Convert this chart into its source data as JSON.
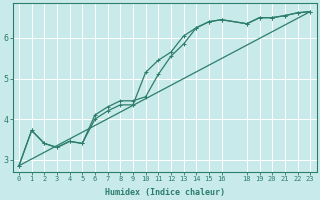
{
  "xlabel": "Humidex (Indice chaleur)",
  "bg_color": "#c8eaea",
  "line_color": "#2d7d6b",
  "grid_color": "#ffffff",
  "xlim": [
    -0.5,
    23.5
  ],
  "ylim": [
    2.7,
    6.85
  ],
  "yticks": [
    3,
    4,
    5,
    6
  ],
  "xticks": [
    0,
    1,
    2,
    3,
    4,
    5,
    6,
    7,
    8,
    9,
    10,
    11,
    12,
    13,
    14,
    15,
    16,
    18,
    19,
    20,
    21,
    22,
    23
  ],
  "series1_x": [
    0,
    1,
    2,
    3,
    4,
    5,
    6,
    7,
    8,
    9,
    10,
    11,
    12,
    13,
    14,
    15,
    16,
    18,
    19,
    20,
    21,
    22,
    23
  ],
  "series1_y": [
    2.85,
    3.72,
    3.4,
    3.3,
    3.45,
    3.4,
    4.1,
    4.3,
    4.45,
    4.45,
    4.55,
    5.1,
    5.55,
    5.85,
    6.25,
    6.4,
    6.45,
    6.35,
    6.5,
    6.5,
    6.55,
    6.62,
    6.65
  ],
  "series2_x": [
    0,
    1,
    2,
    3,
    4,
    5,
    6,
    7,
    8,
    9,
    10,
    11,
    12,
    13,
    14,
    15,
    16,
    18,
    19,
    20,
    21,
    22,
    23
  ],
  "series2_y": [
    2.85,
    3.72,
    3.4,
    3.3,
    3.45,
    3.4,
    4.0,
    4.2,
    4.35,
    4.35,
    5.15,
    5.45,
    5.65,
    6.05,
    6.25,
    6.4,
    6.45,
    6.35,
    6.5,
    6.5,
    6.55,
    6.62,
    6.65
  ],
  "series3_x": [
    0,
    23
  ],
  "series3_y": [
    2.85,
    6.65
  ],
  "marker": "+",
  "marker_size": 3.5,
  "line_width": 0.9,
  "xlabel_fontsize": 6.0,
  "tick_fontsize_x": 5.0,
  "tick_fontsize_y": 6.0
}
